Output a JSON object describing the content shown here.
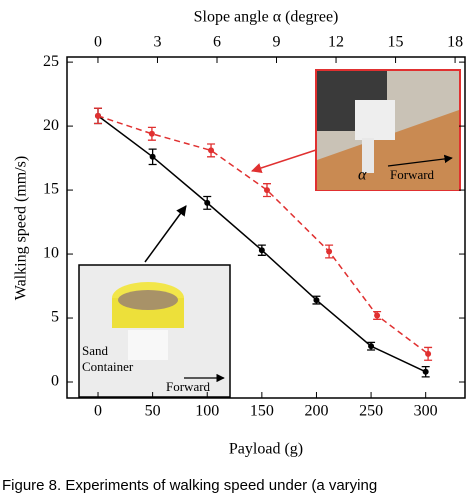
{
  "chart_data": {
    "type": "line",
    "x_label": "Payload (g)",
    "x2_label": "Slope angle α (degree)",
    "y_label": "Walking speed (mm/s)",
    "xlim": [
      -28.4,
      336
    ],
    "xticks": [
      0,
      50,
      100,
      150,
      200,
      250,
      300
    ],
    "x2lim": [
      -1.56,
      18.5
    ],
    "x2ticks": [
      0,
      3,
      6,
      9,
      12,
      15,
      18
    ],
    "ylim": [
      -1.25,
      25.4
    ],
    "yticks": [
      0,
      5,
      10,
      15,
      20,
      25
    ],
    "series": [
      {
        "color": "#000000",
        "dash": false,
        "axis": "x",
        "x": [
          0,
          50,
          100,
          150,
          200,
          250,
          300
        ],
        "values": [
          20.8,
          17.6,
          14.0,
          10.3,
          6.4,
          2.8,
          0.8
        ],
        "errors": [
          0.6,
          0.6,
          0.5,
          0.4,
          0.3,
          0.3,
          0.4
        ]
      },
      {
        "color": "#e03030",
        "dash": true,
        "axis": "x2",
        "x": [
          0,
          2.72,
          5.7,
          8.52,
          11.65,
          14.07,
          16.64
        ],
        "values": [
          20.8,
          19.4,
          18.1,
          15.0,
          10.2,
          5.2,
          2.2
        ],
        "errors": [
          0.6,
          0.5,
          0.5,
          0.5,
          0.5,
          0.3,
          0.5
        ]
      }
    ],
    "annotations": [
      "α",
      "Forward",
      "Sand",
      "Container",
      "Forward"
    ],
    "caption": "Figure 8. Experiments of walking speed under (a varying"
  }
}
